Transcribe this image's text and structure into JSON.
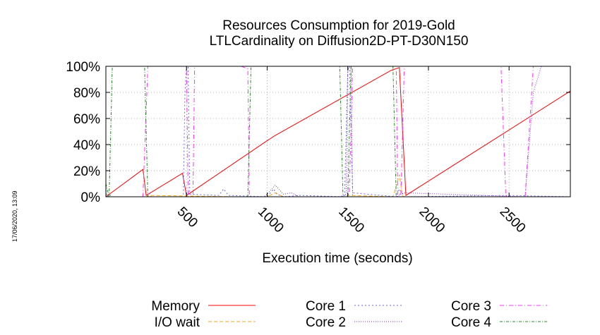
{
  "timestamp": "17/06/2020, 13:09",
  "chart_data": {
    "type": "line",
    "title": [
      "Resources Consumption for 2019-Gold",
      "LTLCardinality on Diffusion2D-PT-D30N150"
    ],
    "xlabel": "Execution time (seconds)",
    "ylabel": "",
    "xlim": [
      0,
      2880
    ],
    "ylim": [
      0,
      100
    ],
    "xticks": [
      {
        "value": 500,
        "label": "500"
      },
      {
        "value": 1000,
        "label": "1000"
      },
      {
        "value": 1500,
        "label": "1500"
      },
      {
        "value": 2000,
        "label": "2000"
      },
      {
        "value": 2500,
        "label": "2500"
      }
    ],
    "yticks": [
      {
        "value": 0,
        "label": "0%"
      },
      {
        "value": 20,
        "label": "20%"
      },
      {
        "value": 40,
        "label": "40%"
      },
      {
        "value": 60,
        "label": "60%"
      },
      {
        "value": 80,
        "label": "80%"
      },
      {
        "value": 100,
        "label": "100%"
      }
    ],
    "grid": true,
    "legend_position": "bottom",
    "series": [
      {
        "name": "Memory",
        "color": "#ff0000",
        "dash": "",
        "x": [
          0,
          230,
          250,
          475,
          500,
          1000,
          1050,
          1770,
          1820,
          1860,
          2880
        ],
        "y": [
          0,
          21,
          1,
          18,
          1,
          43,
          47,
          97,
          99,
          1,
          81
        ]
      },
      {
        "name": "I/O wait",
        "color": "#ffa500",
        "dash": "5,3",
        "x": [
          0,
          250,
          270,
          800,
          1000,
          1050,
          1100,
          1480,
          1500,
          1780,
          1800,
          1820,
          1840,
          2880
        ],
        "y": [
          0,
          0,
          1,
          0,
          0,
          3,
          0,
          0,
          1,
          0,
          8,
          17,
          0,
          0
        ]
      },
      {
        "name": "Core 1",
        "color": "#6666ff",
        "dash": "2,3",
        "x": [
          0,
          10,
          20,
          40,
          250,
          270,
          280,
          480,
          490,
          500,
          510,
          520,
          700,
          730,
          760,
          1000,
          1040,
          1060,
          1100,
          1200,
          1480,
          1500,
          1510,
          1530,
          1800,
          1820,
          1850,
          2500,
          2880
        ],
        "y": [
          5,
          0,
          2,
          0,
          0,
          3,
          0,
          0,
          80,
          100,
          100,
          2,
          1,
          6,
          1,
          0,
          6,
          2,
          0,
          1,
          0,
          97,
          100,
          3,
          0,
          6,
          0,
          1,
          0
        ]
      },
      {
        "name": "Core 2",
        "color": "#8a2be2",
        "dash": "1,2",
        "x": [
          0,
          980,
          1000,
          1050,
          1100,
          1150,
          1200,
          1450,
          1490,
          1500,
          1520,
          1530,
          1800,
          1850,
          2600,
          2650,
          2700,
          2880
        ],
        "y": [
          0,
          0,
          2,
          9,
          2,
          3,
          0,
          0,
          2,
          100,
          100,
          0,
          0,
          3,
          0,
          80,
          100,
          100
        ]
      },
      {
        "name": "Core 3",
        "color": "#ff33ff",
        "dash": "6,3,1,3",
        "x": [
          0,
          230,
          260,
          500,
          510,
          540,
          550,
          560,
          840,
          880,
          890,
          1500,
          1510,
          1530,
          1540,
          1800,
          1810,
          1830,
          1850,
          1860,
          2400,
          2450,
          2480,
          2600,
          2650,
          2700,
          2880
        ],
        "y": [
          0,
          0,
          100,
          100,
          2,
          2,
          100,
          100,
          100,
          98,
          0,
          0,
          5,
          100,
          100,
          100,
          0,
          3,
          100,
          100,
          100,
          100,
          0,
          0,
          100,
          100,
          100
        ]
      },
      {
        "name": "Core 4",
        "color": "#228b22",
        "dash": "4,2,1,2",
        "x": [
          0,
          20,
          40,
          240,
          260,
          880,
          900,
          1450,
          1470,
          1500,
          1520,
          1780,
          1800,
          1860,
          2880
        ],
        "y": [
          10,
          0,
          100,
          100,
          0,
          0,
          100,
          100,
          0,
          0,
          100,
          100,
          0,
          0,
          0
        ]
      }
    ]
  }
}
